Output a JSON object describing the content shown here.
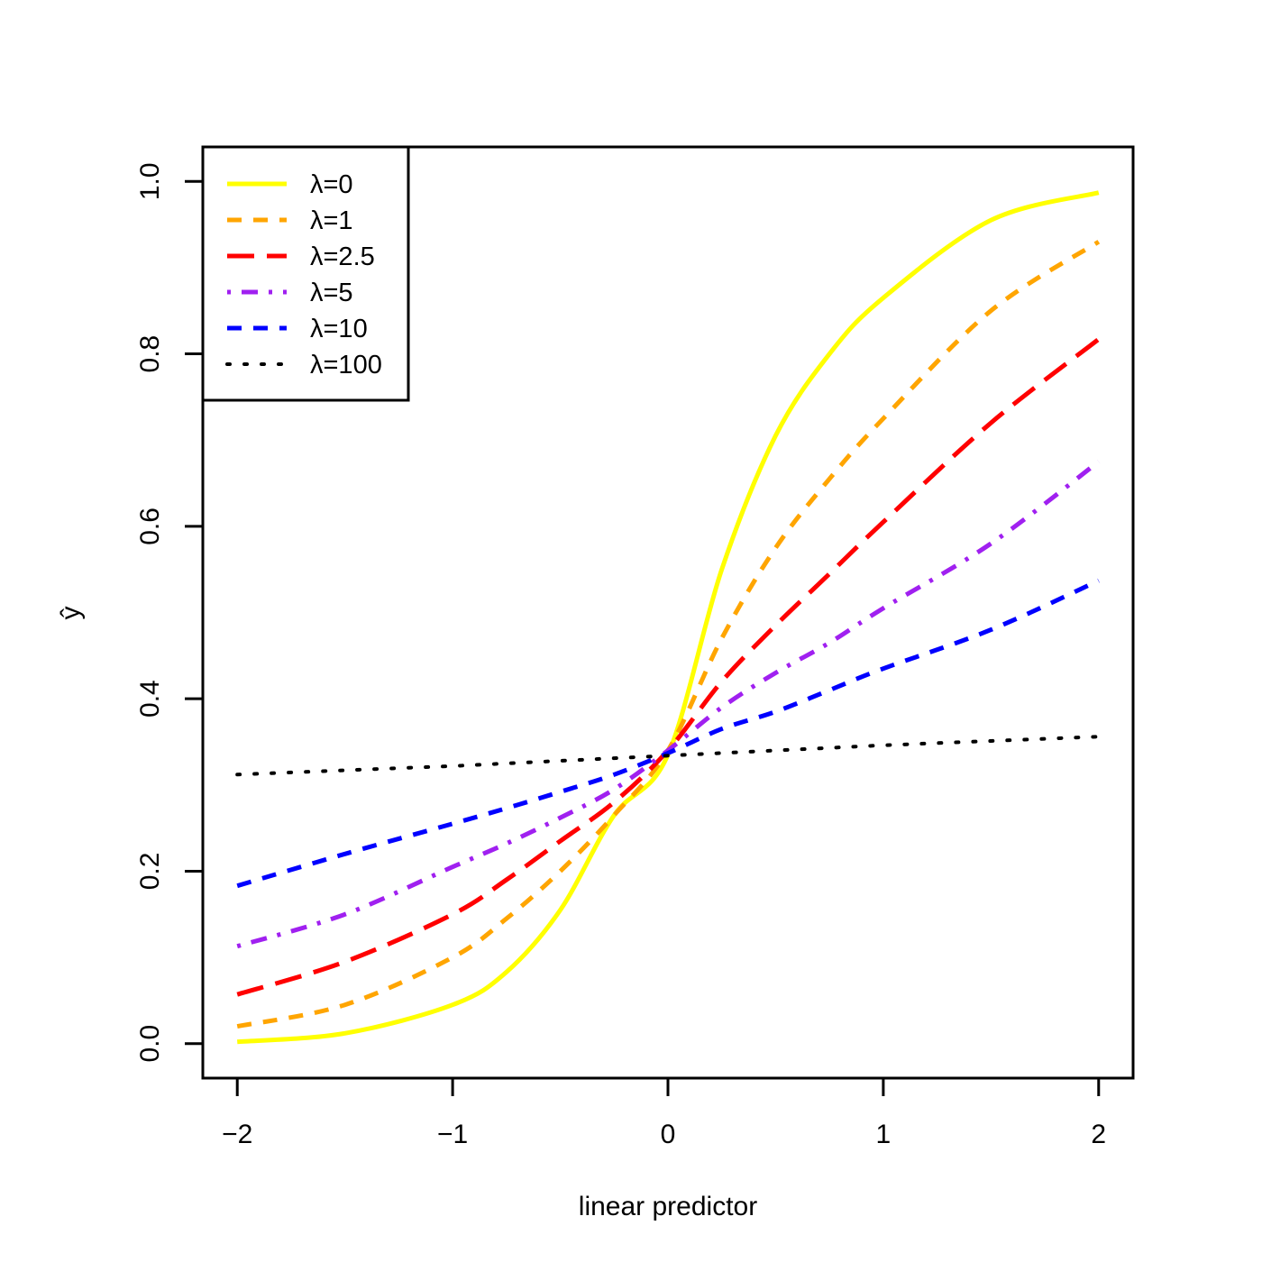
{
  "chart_data": {
    "type": "line",
    "title": "",
    "xlabel": "linear predictor",
    "ylabel": "ŷ",
    "xlim": [
      -2.16,
      2.16
    ],
    "ylim": [
      -0.04,
      1.04
    ],
    "x_ticks": [
      -2,
      -1,
      0,
      1,
      2
    ],
    "x_tick_labels": [
      "−2",
      "−1",
      "0",
      "1",
      "2"
    ],
    "y_ticks": [
      0.0,
      0.2,
      0.4,
      0.6,
      0.8,
      1.0
    ],
    "y_tick_labels": [
      "0.0",
      "0.2",
      "0.4",
      "0.6",
      "0.8",
      "1.0"
    ],
    "grid": false,
    "legend_position": "top-left",
    "x": [
      -2.0,
      -1.5,
      -1.0,
      -0.75,
      -0.5,
      -0.25,
      0.0,
      0.25,
      0.5,
      0.75,
      1.0,
      1.5,
      2.0
    ],
    "series": [
      {
        "name": "λ=0",
        "color": "#ffff00",
        "dash": "solid",
        "values": [
          0.002,
          0.012,
          0.045,
          0.083,
          0.155,
          0.265,
          0.335,
          0.55,
          0.705,
          0.8,
          0.865,
          0.955,
          0.987
        ]
      },
      {
        "name": "λ=1",
        "color": "#ffa500",
        "dash": "dashed",
        "values": [
          0.02,
          0.045,
          0.1,
          0.145,
          0.2,
          0.265,
          0.34,
          0.47,
          0.575,
          0.655,
          0.725,
          0.85,
          0.93
        ]
      },
      {
        "name": "λ=2.5",
        "color": "#ff0000",
        "dash": "longdash",
        "values": [
          0.057,
          0.095,
          0.15,
          0.19,
          0.235,
          0.28,
          0.34,
          0.42,
          0.485,
          0.545,
          0.605,
          0.72,
          0.817
        ]
      },
      {
        "name": "λ=5",
        "color": "#a020f0",
        "dash": "dotdash",
        "values": [
          0.113,
          0.15,
          0.205,
          0.232,
          0.262,
          0.295,
          0.34,
          0.39,
          0.43,
          0.465,
          0.505,
          0.58,
          0.675
        ]
      },
      {
        "name": "λ=10",
        "color": "#0000ff",
        "dash": "dashed",
        "values": [
          0.183,
          0.22,
          0.255,
          0.273,
          0.292,
          0.312,
          0.337,
          0.365,
          0.385,
          0.41,
          0.435,
          0.48,
          0.537
        ]
      },
      {
        "name": "λ=100",
        "color": "#000000",
        "dash": "dotted",
        "values": [
          0.312,
          0.317,
          0.322,
          0.325,
          0.328,
          0.331,
          0.334,
          0.337,
          0.34,
          0.343,
          0.346,
          0.351,
          0.356
        ]
      }
    ]
  }
}
